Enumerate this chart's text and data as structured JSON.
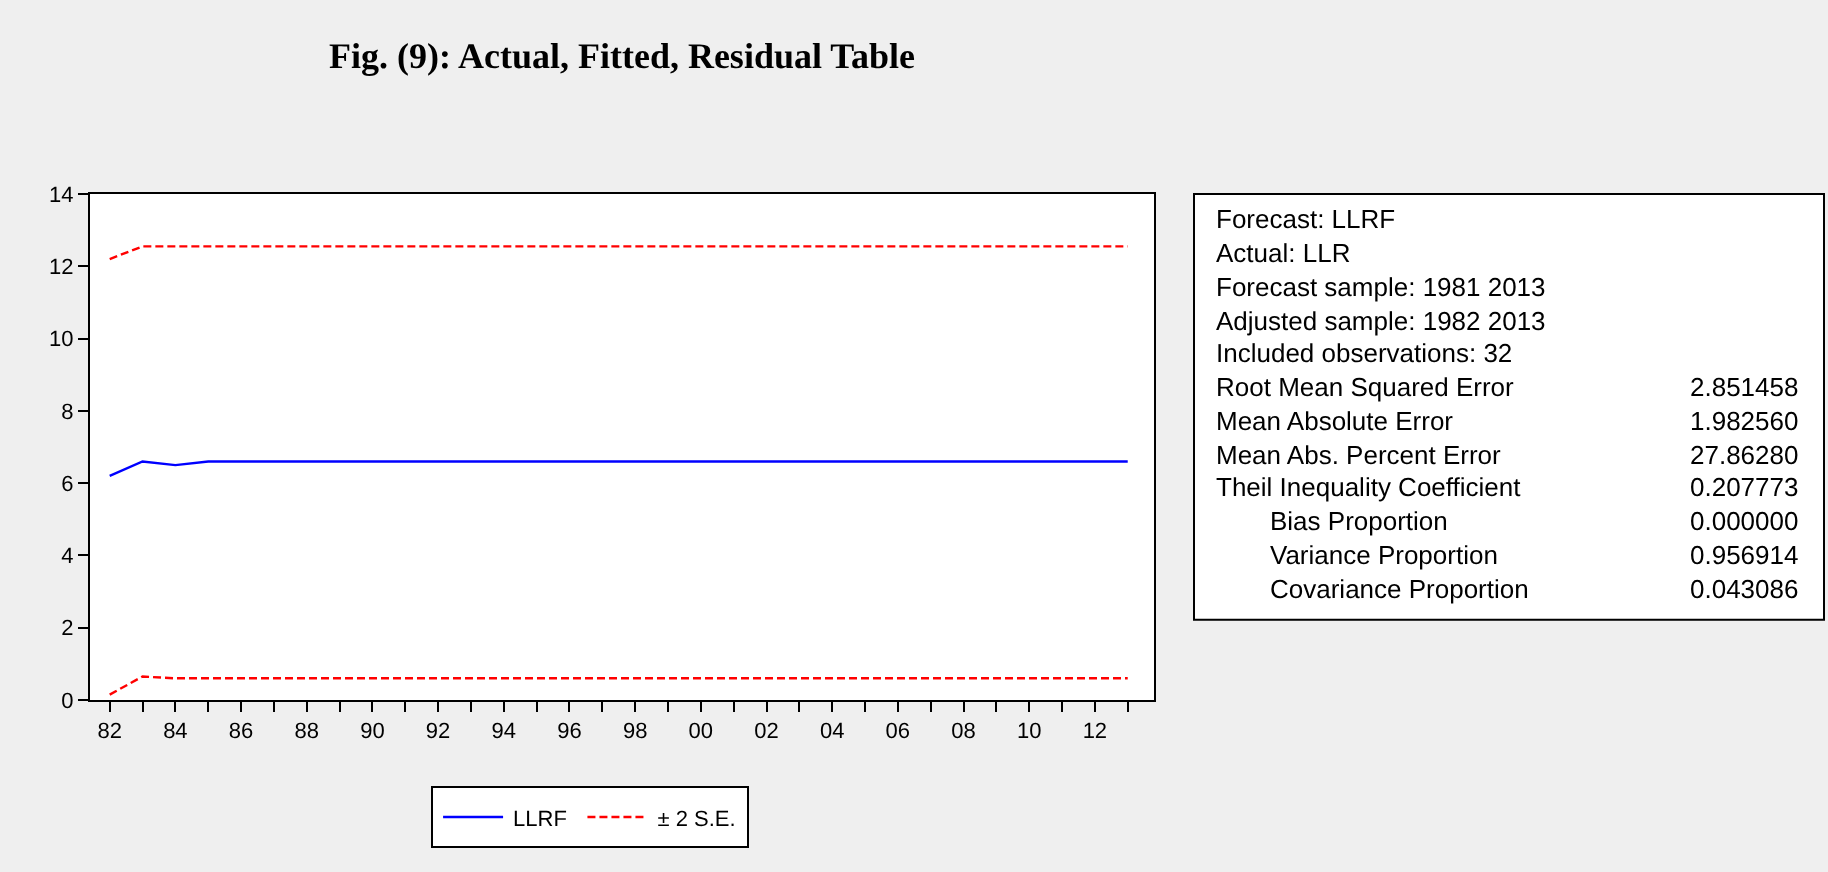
{
  "chart_data": [
    {
      "type": "line",
      "title": "Fig. (9): Actual, Fitted, Residual Table",
      "x": [
        1982,
        1983,
        1984,
        1985,
        1986,
        1987,
        1988,
        1989,
        1990,
        1991,
        1992,
        1993,
        1994,
        1995,
        1996,
        1997,
        1998,
        1999,
        2000,
        2001,
        2002,
        2003,
        2004,
        2005,
        2006,
        2007,
        2008,
        2009,
        2010,
        2011,
        2012,
        2013
      ],
      "series": [
        {
          "name": "LLRF",
          "color": "#0000ff",
          "line_style": "solid",
          "values": [
            6.2,
            6.6,
            6.5,
            6.6,
            6.6,
            6.6,
            6.6,
            6.6,
            6.6,
            6.6,
            6.6,
            6.6,
            6.6,
            6.6,
            6.6,
            6.6,
            6.6,
            6.6,
            6.6,
            6.6,
            6.6,
            6.6,
            6.6,
            6.6,
            6.6,
            6.6,
            6.6,
            6.6,
            6.6,
            6.6,
            6.6,
            6.6
          ]
        },
        {
          "name": "± 2 S.E.",
          "color": "#ff0000",
          "line_style": "dashed",
          "values": [
            12.2,
            12.55,
            12.55,
            12.55,
            12.55,
            12.55,
            12.55,
            12.55,
            12.55,
            12.55,
            12.55,
            12.55,
            12.55,
            12.55,
            12.55,
            12.55,
            12.55,
            12.55,
            12.55,
            12.55,
            12.55,
            12.55,
            12.55,
            12.55,
            12.55,
            12.55,
            12.55,
            12.55,
            12.55,
            12.55,
            12.55,
            12.55
          ]
        },
        {
          "color": "#ff0000",
          "line_style": "dashed",
          "values": [
            0.15,
            0.65,
            0.6,
            0.6,
            0.6,
            0.6,
            0.6,
            0.6,
            0.6,
            0.6,
            0.6,
            0.6,
            0.6,
            0.6,
            0.6,
            0.6,
            0.6,
            0.6,
            0.6,
            0.6,
            0.6,
            0.6,
            0.6,
            0.6,
            0.6,
            0.6,
            0.6,
            0.6,
            0.6,
            0.6,
            0.6,
            0.6
          ]
        }
      ],
      "xlim": [
        1981.4,
        2013.8
      ],
      "xticks": [
        {
          "value": 1982,
          "label": "82"
        },
        {
          "value": 1983,
          "label": null
        },
        {
          "value": 1984,
          "label": "84"
        },
        {
          "value": 1985,
          "label": null
        },
        {
          "value": 1986,
          "label": "86"
        },
        {
          "value": 1987,
          "label": null
        },
        {
          "value": 1988,
          "label": "88"
        },
        {
          "value": 1989,
          "label": null
        },
        {
          "value": 1990,
          "label": "90"
        },
        {
          "value": 1991,
          "label": null
        },
        {
          "value": 1992,
          "label": "92"
        },
        {
          "value": 1993,
          "label": null
        },
        {
          "value": 1994,
          "label": "94"
        },
        {
          "value": 1995,
          "label": null
        },
        {
          "value": 1996,
          "label": "96"
        },
        {
          "value": 1997,
          "label": null
        },
        {
          "value": 1998,
          "label": "98"
        },
        {
          "value": 1999,
          "label": null
        },
        {
          "value": 2000,
          "label": "00"
        },
        {
          "value": 2001,
          "label": null
        },
        {
          "value": 2002,
          "label": "02"
        },
        {
          "value": 2003,
          "label": null
        },
        {
          "value": 2004,
          "label": "04"
        },
        {
          "value": 2005,
          "label": null
        },
        {
          "value": 2006,
          "label": "06"
        },
        {
          "value": 2007,
          "label": null
        },
        {
          "value": 2008,
          "label": "08"
        },
        {
          "value": 2009,
          "label": null
        },
        {
          "value": 2010,
          "label": "10"
        },
        {
          "value": 2011,
          "label": null
        },
        {
          "value": 2012,
          "label": "12"
        },
        {
          "value": 2013,
          "label": null
        }
      ],
      "ylim": [
        0,
        14
      ],
      "yticks": [
        0,
        2,
        4,
        6,
        8,
        10,
        12,
        14
      ],
      "legend": "bottom",
      "marker": "none"
    },
    {
      "type": "other",
      "categories": [
        "Forecast: LLRF",
        "Actual: LLR",
        "Forecast sample: 1981 2013",
        "Adjusted sample: 1982 2013",
        "Included observations: 32",
        "Root Mean Squared Error",
        "Mean Absolute Error",
        "Mean Abs. Percent Error",
        "Theil Inequality Coefficient",
        "Bias Proportion",
        "Variance Proportion",
        "Covariance Proportion"
      ],
      "annotations": [
        "2.851458",
        "1.982560",
        "27.86280",
        "0.207773",
        "0.000000",
        "0.956914",
        "0.043086"
      ]
    }
  ]
}
